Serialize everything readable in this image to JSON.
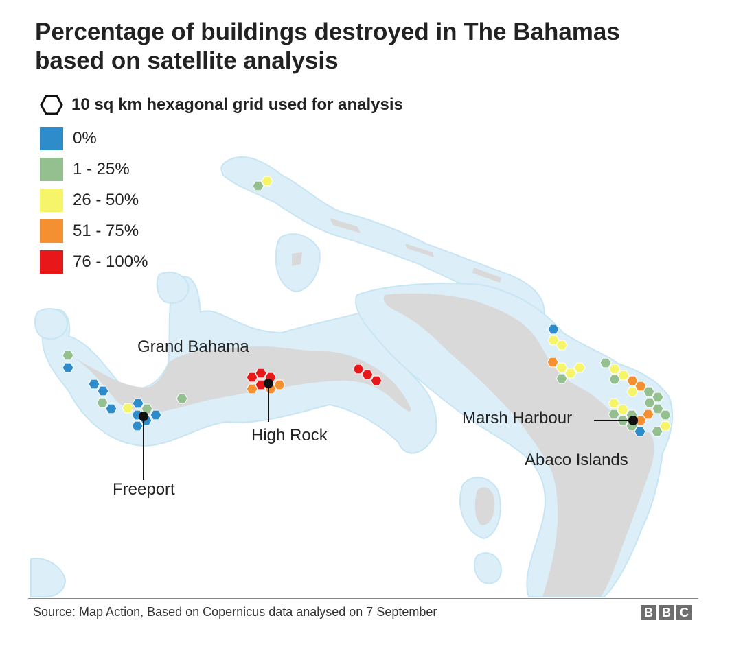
{
  "title": "Percentage of buildings destroyed in The Bahamas based on satellite analysis",
  "hex_note": "10 sq km hexagonal grid used for analysis",
  "legend": [
    {
      "label": "0%",
      "color": "#2e8ccb"
    },
    {
      "label": "1 - 25%",
      "color": "#94bf8e"
    },
    {
      "label": "26 - 50%",
      "color": "#f6f56a"
    },
    {
      "label": "51 - 75%",
      "color": "#f59032"
    },
    {
      "label": "76 - 100%",
      "color": "#e8171a"
    }
  ],
  "colors": {
    "land": "#d9d9d9",
    "shallow_water": "#d9eef8",
    "sea": "#ffffff"
  },
  "places": {
    "grand_bahama": "Grand Bahama",
    "freeport": "Freeport",
    "high_rock": "High Rock",
    "marsh_harbour": "Marsh Harbour",
    "abaco": "Abaco Islands"
  },
  "source": "Source: Map Action, Based on Copernicus data analysed on 7 September",
  "logo": [
    "B",
    "B",
    "C"
  ]
}
